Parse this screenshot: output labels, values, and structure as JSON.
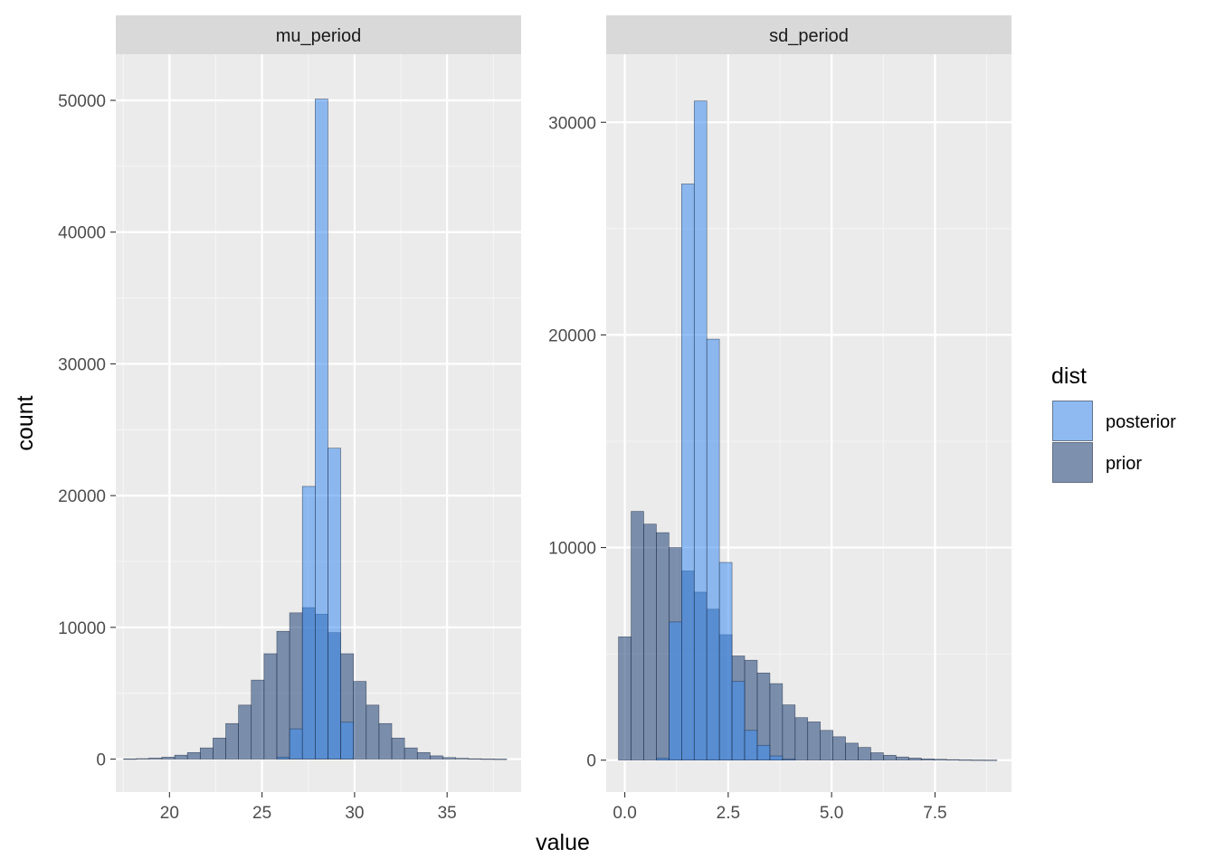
{
  "chart_data": {
    "type": "bar",
    "xlabel": "value",
    "ylabel": "count",
    "legend": {
      "title": "dist",
      "position": "right",
      "entries": [
        {
          "name": "posterior",
          "color": "#3C8CF0"
        },
        {
          "name": "prior",
          "color": "#1E4178"
        }
      ]
    },
    "grid": true,
    "panels": [
      {
        "title": "mu_period",
        "xlim": [
          17.1,
          39.0
        ],
        "ylim": [
          -2500,
          53500
        ],
        "xticks": [
          20,
          25,
          30,
          35
        ],
        "xtick_labels": [
          "20",
          "25",
          "30",
          "35"
        ],
        "yticks": [
          0,
          10000,
          20000,
          30000,
          40000,
          50000
        ],
        "ytick_labels": [
          "0",
          "10000",
          "20000",
          "30000",
          "40000",
          "50000"
        ],
        "bin_width": 0.69,
        "series": [
          {
            "name": "posterior",
            "bin_centers": [
              26.145,
              26.835,
              27.525,
              28.215,
              28.905,
              29.595
            ],
            "values": [
              150,
              2300,
              20700,
              50100,
              23600,
              2800
            ]
          },
          {
            "name": "prior",
            "bin_centers": [
              17.865,
              18.555,
              19.245,
              19.935,
              20.625,
              21.315,
              22.005,
              22.695,
              23.385,
              24.075,
              24.765,
              25.455,
              26.145,
              26.835,
              27.525,
              28.215,
              28.905,
              29.595,
              30.285,
              30.975,
              31.665,
              32.355,
              33.045,
              33.735,
              34.425,
              35.115,
              35.805,
              36.495,
              37.185,
              37.875
            ],
            "values": [
              20,
              40,
              80,
              150,
              300,
              500,
              850,
              1600,
              2700,
              4100,
              6000,
              8000,
              9700,
              11100,
              11500,
              11000,
              9600,
              8000,
              5900,
              4100,
              2700,
              1600,
              850,
              500,
              250,
              120,
              60,
              30,
              15,
              5
            ]
          }
        ]
      },
      {
        "title": "sd_period",
        "xlim": [
          -0.45,
          9.35
        ],
        "ylim": [
          -1500,
          33200
        ],
        "xticks": [
          0.0,
          2.5,
          5.0,
          7.5
        ],
        "xtick_labels": [
          "0.0",
          "2.5",
          "5.0",
          "7.5"
        ],
        "yticks": [
          0,
          10000,
          20000,
          30000
        ],
        "ytick_labels": [
          "0",
          "10000",
          "20000",
          "30000"
        ],
        "bin_width": 0.305,
        "series": [
          {
            "name": "posterior",
            "bin_centers": [
              0.915,
              1.22,
              1.525,
              1.83,
              2.135,
              2.44,
              2.745,
              3.05,
              3.355,
              3.66,
              3.965
            ],
            "values": [
              100,
              6500,
              27100,
              31000,
              19800,
              9300,
              3700,
              1400,
              700,
              200,
              50
            ]
          },
          {
            "name": "prior",
            "bin_centers": [
              0.0,
              0.305,
              0.61,
              0.915,
              1.22,
              1.525,
              1.83,
              2.135,
              2.44,
              2.745,
              3.05,
              3.355,
              3.66,
              3.965,
              4.27,
              4.575,
              4.88,
              5.185,
              5.49,
              5.795,
              6.1,
              6.405,
              6.71,
              7.015,
              7.32,
              7.625,
              7.93,
              8.235,
              8.54,
              8.845
            ],
            "values": [
              5800,
              11700,
              11100,
              10700,
              10000,
              8900,
              7900,
              7100,
              5900,
              4900,
              4700,
              4100,
              3600,
              2600,
              2000,
              1800,
              1400,
              1100,
              800,
              600,
              350,
              230,
              150,
              100,
              60,
              40,
              25,
              15,
              8,
              5
            ]
          }
        ]
      }
    ]
  }
}
